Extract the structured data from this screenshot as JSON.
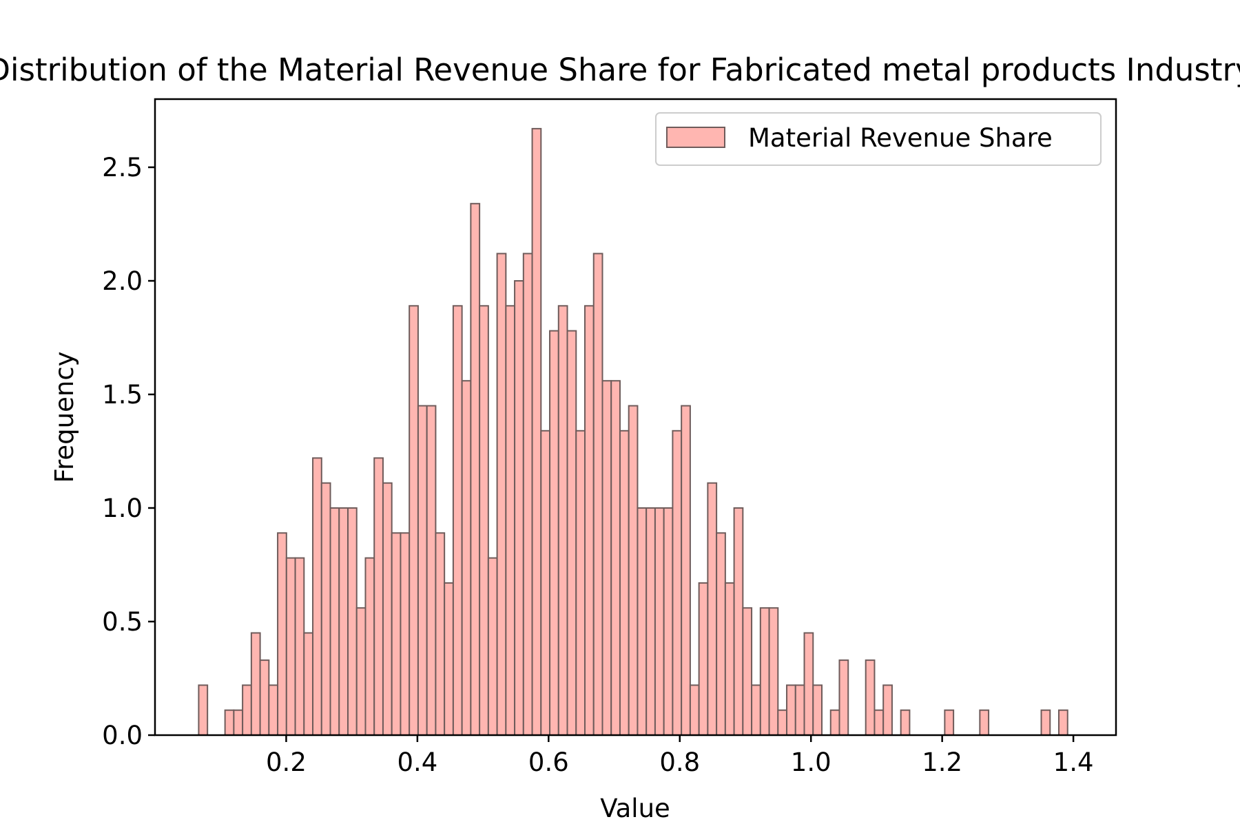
{
  "chart_data": {
    "type": "bar",
    "title": "Distribution of the Material Revenue Share for Fabricated metal products Industry",
    "xlabel": "Value",
    "ylabel": "Frequency",
    "xlim": [
      0.0,
      1.465
    ],
    "ylim": [
      0.0,
      2.8
    ],
    "x_ticks": [
      0.2,
      0.4,
      0.6,
      0.8,
      1.0,
      1.2,
      1.4
    ],
    "x_tick_labels": [
      "0.2",
      "0.4",
      "0.6",
      "0.8",
      "1.0",
      "1.2",
      "1.4"
    ],
    "y_ticks": [
      0.0,
      0.5,
      1.0,
      1.5,
      2.0,
      2.5
    ],
    "y_tick_labels": [
      "0.0",
      "0.5",
      "1.0",
      "1.5",
      "2.0",
      "2.5"
    ],
    "grid": false,
    "legend_position": "top-right",
    "bin_edges_start": 0.0666,
    "bin_width": 0.01338,
    "values": [
      0.22,
      0,
      0,
      0.11,
      0.11,
      0.22,
      0.45,
      0.33,
      0.22,
      0.89,
      0.78,
      0.78,
      0.45,
      1.22,
      1.11,
      1.0,
      1.0,
      1.0,
      0.56,
      0.78,
      1.22,
      1.11,
      0.89,
      0.89,
      1.89,
      1.45,
      1.45,
      0.89,
      0.67,
      1.89,
      1.56,
      2.34,
      1.89,
      0.78,
      2.12,
      1.89,
      2.0,
      2.12,
      2.67,
      1.34,
      1.78,
      1.89,
      1.78,
      1.34,
      1.89,
      2.12,
      1.56,
      1.56,
      1.34,
      1.45,
      1.0,
      1.0,
      1.0,
      1.0,
      1.34,
      1.45,
      0.22,
      0.67,
      1.11,
      0.89,
      0.67,
      1.0,
      0.56,
      0.22,
      0.56,
      0.56,
      0.11,
      0.22,
      0.22,
      0.45,
      0.22,
      0,
      0.11,
      0.33,
      0,
      0,
      0.33,
      0.11,
      0.22,
      0,
      0.11,
      0,
      0,
      0,
      0,
      0.11,
      0,
      0,
      0,
      0.11,
      0,
      0,
      0,
      0,
      0,
      0,
      0.11,
      0,
      0.11
    ],
    "series": [
      {
        "name": "Material Revenue Share",
        "color": "#ffb6b1",
        "edgecolor": "#6e5b5a"
      }
    ]
  }
}
